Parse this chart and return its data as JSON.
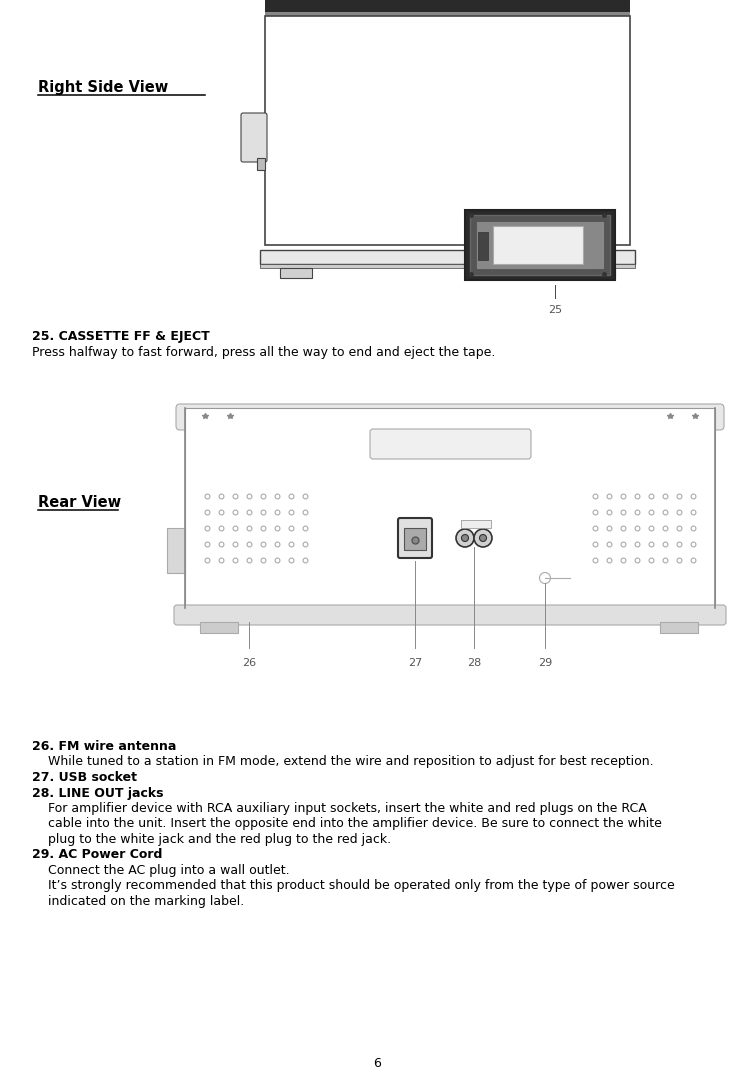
{
  "page_number": "6",
  "bg_color": "#ffffff",
  "right_side_view_label": "Right Side View",
  "rear_view_label": "Rear View",
  "item25_title": "25. CASSETTE FF & EJECT",
  "item25_body": "Press halfway to fast forward, press all the way to end and eject the tape.",
  "item26_title": "26. FM wire antenna",
  "item26_body": "    While tuned to a station in FM mode, extend the wire and reposition to adjust for best reception.",
  "item27_title": "27. USB socket",
  "item28_title": "28. LINE OUT jacks",
  "item28_body_1": "    For amplifier device with RCA auxiliary input sockets, insert the white and red plugs on the RCA",
  "item28_body_2": "    cable into the unit. Insert the opposite end into the amplifier device. Be sure to connect the white",
  "item28_body_3": "    plug to the white jack and the red plug to the red jack.",
  "item29_title": "29. AC Power Cord",
  "item29_body_1": "    Connect the AC plug into a wall outlet.",
  "item29_body_2": "    It’s strongly recommended that this product should be operated only from the type of power source",
  "item29_body_3": "    indicated on the marking label.",
  "title_fontsize": 9,
  "body_fontsize": 9,
  "diagram_line_color": "#444444",
  "diagram_fill_light": "#f5f5f5",
  "diagram_fill_dark": "#333333",
  "diagram_stroke": "#555555"
}
